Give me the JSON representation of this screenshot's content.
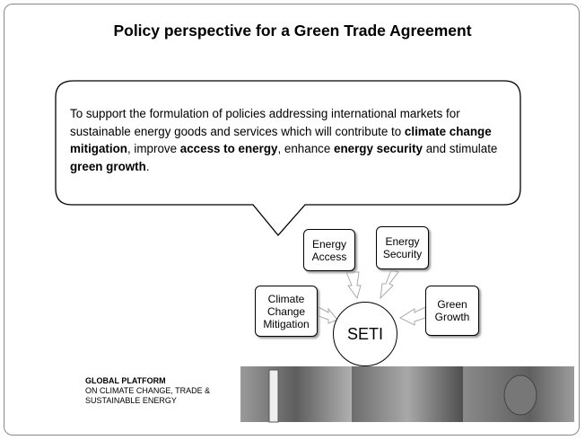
{
  "header": {
    "title": "Policy perspective for a Green Trade Agreement"
  },
  "bubble": {
    "segments": [
      {
        "text": "To support the formulation of policies addressing international markets for sustainable energy goods and services which will contribute to ",
        "bold": false
      },
      {
        "text": "climate change mitigation",
        "bold": true
      },
      {
        "text": ", improve ",
        "bold": false
      },
      {
        "text": "access to energy",
        "bold": true
      },
      {
        "text": ", enhance ",
        "bold": false
      },
      {
        "text": "energy security",
        "bold": true
      },
      {
        "text": " and stimulate ",
        "bold": false
      },
      {
        "text": "green growth",
        "bold": true
      },
      {
        "text": ".",
        "bold": false
      }
    ]
  },
  "nodes": [
    {
      "label": "Energy Access"
    },
    {
      "label": "Energy Security"
    },
    {
      "label": "Climate Change Mitigation"
    },
    {
      "label": "Green Growth"
    },
    {
      "label": "SETI"
    }
  ],
  "footer": {
    "lines": [
      "GLOBAL PLATFORM",
      "ON CLIMATE CHANGE, TRADE &",
      "SUSTAINABLE ENERGY"
    ]
  }
}
